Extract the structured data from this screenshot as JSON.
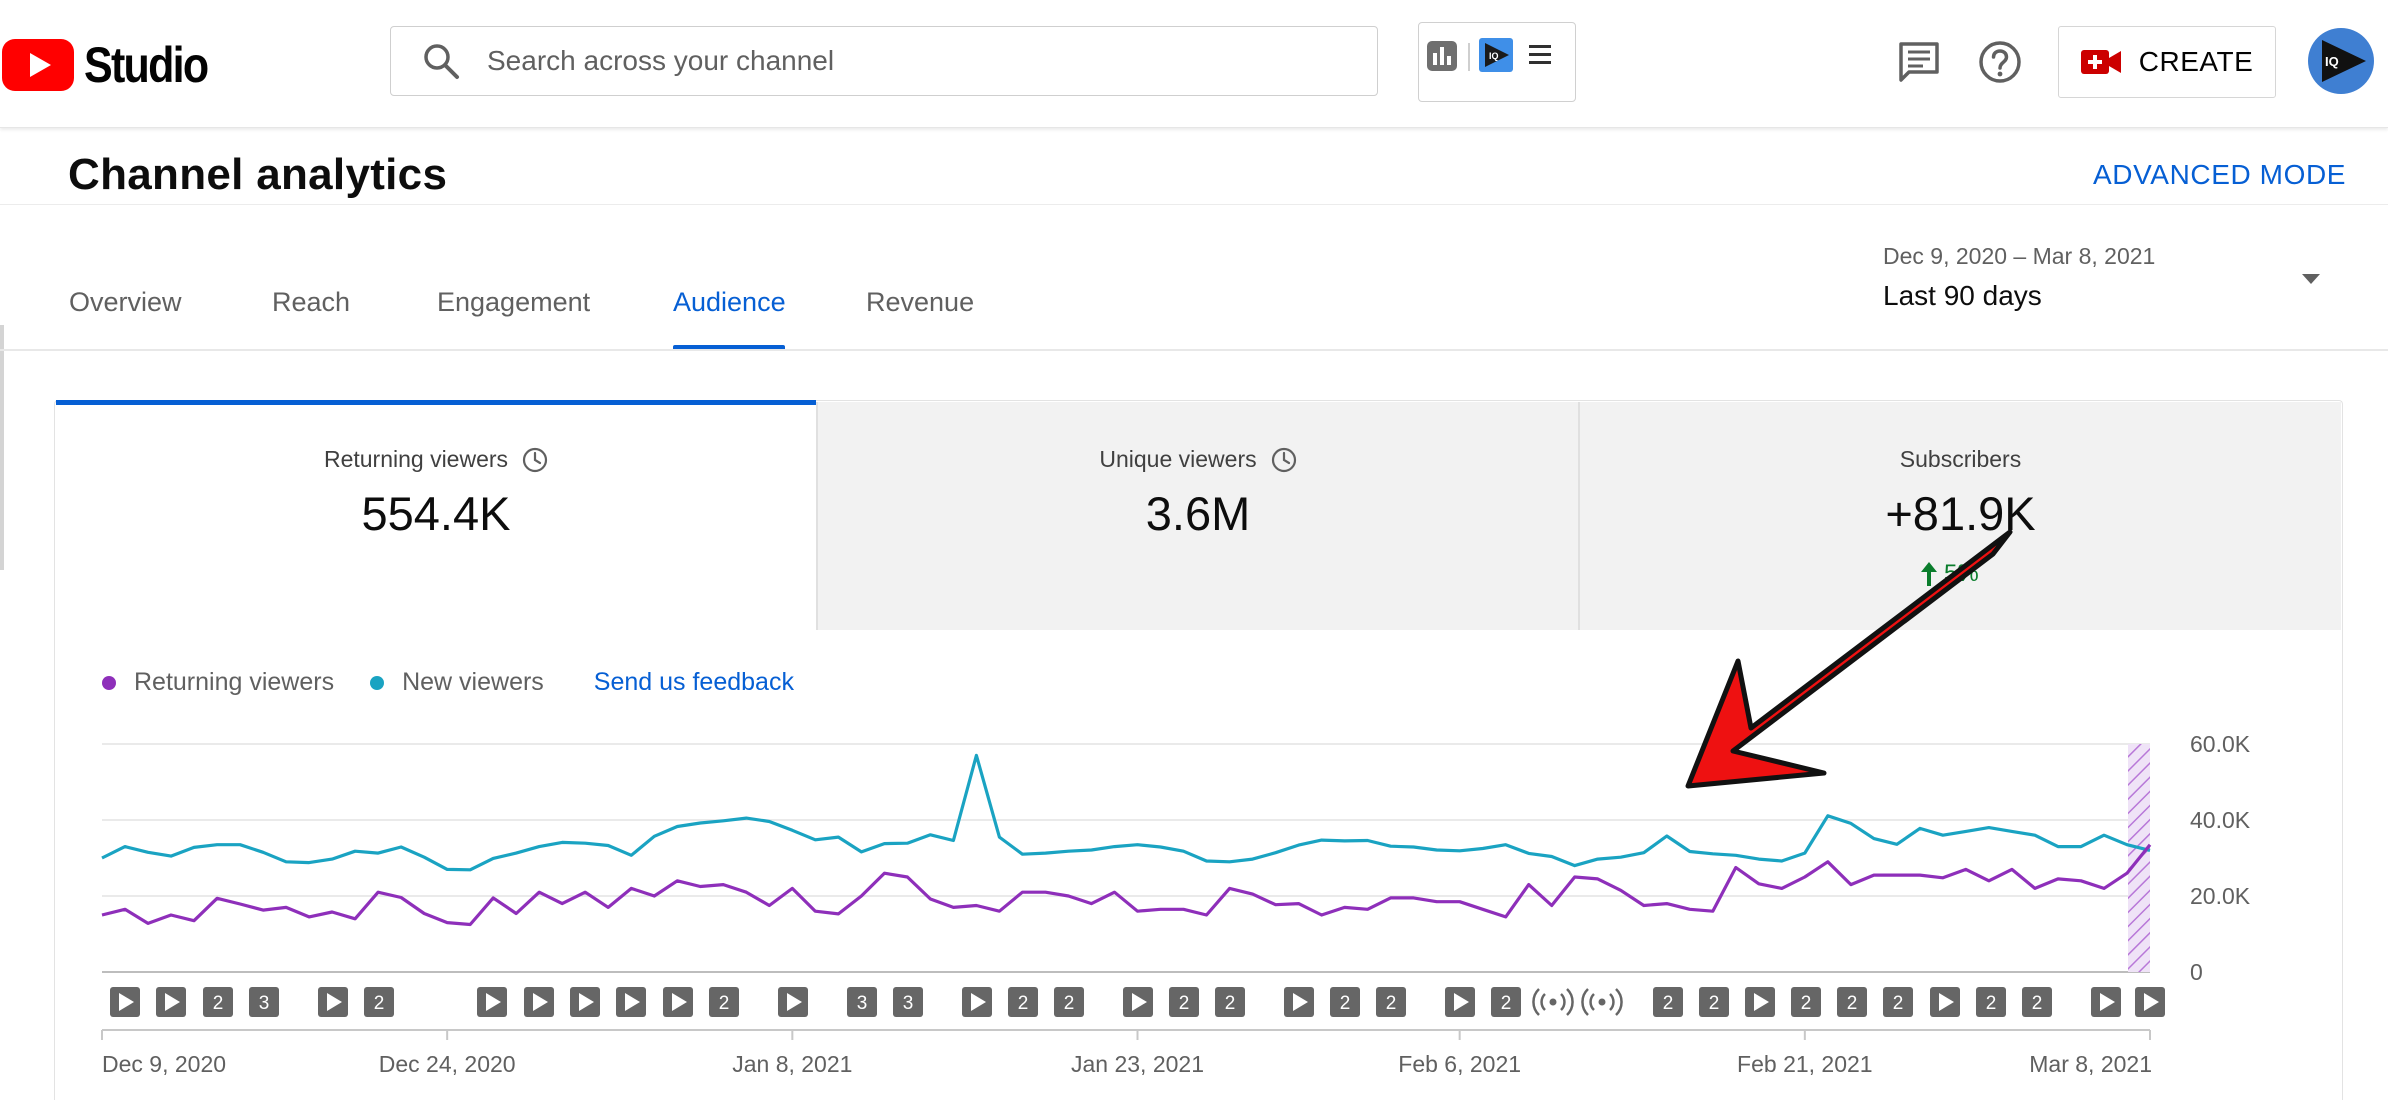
{
  "app": {
    "logo_text": "Studio",
    "search_placeholder": "Search across your channel",
    "create_label": "CREATE",
    "avatar_text": "IQ"
  },
  "header": {
    "title": "Channel analytics",
    "advanced_mode": "ADVANCED MODE"
  },
  "tabs": [
    {
      "label": "Overview",
      "active": false
    },
    {
      "label": "Reach",
      "active": false
    },
    {
      "label": "Engagement",
      "active": false
    },
    {
      "label": "Audience",
      "active": true
    },
    {
      "label": "Revenue",
      "active": false
    }
  ],
  "date_range": {
    "range": "Dec 9, 2020 – Mar 8, 2021",
    "label": "Last 90 days"
  },
  "metrics": [
    {
      "label": "Returning viewers",
      "value": "554.4K",
      "selected": true
    },
    {
      "label": "Unique viewers",
      "value": "3.6M",
      "selected": false
    },
    {
      "label": "Subscribers",
      "value": "+81.9K",
      "selected": false,
      "change": "5%"
    }
  ],
  "legend": {
    "returning": "Returning viewers",
    "new": "New viewers",
    "feedback": "Send us feedback"
  },
  "colors": {
    "returning": "#8e2fba",
    "new": "#1aa3c2",
    "accent": "#065fd4",
    "youtube_red": "#ff0000"
  },
  "chart_data": {
    "type": "line",
    "title": "",
    "xlabel": "",
    "ylabel": "",
    "ylim": [
      0,
      60000
    ],
    "y_ticks": [
      "0",
      "20.0K",
      "40.0K",
      "60.0K"
    ],
    "y_tick_values": [
      0,
      20000,
      40000,
      60000
    ],
    "x_ticks": [
      "Dec 9, 2020",
      "Dec 24, 2020",
      "Jan 8, 2021",
      "Jan 23, 2021",
      "Feb 6, 2021",
      "Feb 21, 2021",
      "Mar 8, 2021"
    ],
    "x_tick_days": [
      0,
      15,
      30,
      45,
      59,
      74,
      89
    ],
    "days": 90,
    "series": [
      {
        "name": "New viewers",
        "color": "#1aa3c2",
        "values": [
          30000,
          33000,
          31500,
          30500,
          32800,
          33500,
          33500,
          31500,
          29000,
          28800,
          29700,
          31800,
          31300,
          32900,
          30200,
          27000,
          26900,
          29900,
          31300,
          33000,
          34100,
          33900,
          33300,
          30700,
          35700,
          38300,
          39200,
          39800,
          40500,
          39600,
          37300,
          34800,
          35500,
          31600,
          33800,
          33900,
          36100,
          34600,
          57000,
          35500,
          31000,
          31300,
          31800,
          32100,
          33000,
          33500,
          32900,
          31800,
          29200,
          29000,
          29700,
          31400,
          33400,
          34700,
          34500,
          34600,
          33100,
          32900,
          32100,
          31900,
          32500,
          33500,
          31200,
          30400,
          28000,
          29700,
          30200,
          31400,
          35800,
          31700,
          31100,
          30700,
          29700,
          29200,
          31300,
          41100,
          39100,
          35100,
          33600,
          37800,
          36000,
          37000,
          38000,
          37000,
          36000,
          33000,
          33000,
          36000,
          33500,
          32000
        ]
      },
      {
        "name": "Returning viewers",
        "color": "#8e2fba",
        "values": [
          15000,
          16500,
          12800,
          15000,
          13500,
          19400,
          17900,
          16300,
          17000,
          14500,
          15800,
          14000,
          21000,
          19600,
          15400,
          13000,
          12500,
          19500,
          15400,
          21000,
          18000,
          21000,
          17000,
          22000,
          20000,
          24000,
          22500,
          23000,
          21000,
          17500,
          22000,
          16000,
          15300,
          20000,
          26000,
          25000,
          19200,
          17000,
          17500,
          16000,
          21000,
          21000,
          20000,
          18000,
          21000,
          16000,
          16500,
          16500,
          15000,
          22000,
          20500,
          17700,
          18000,
          15000,
          17000,
          16500,
          19500,
          19500,
          18500,
          18500,
          16500,
          14500,
          23000,
          17500,
          25000,
          24500,
          21500,
          17500,
          18000,
          16500,
          16000,
          27500,
          23200,
          22000,
          25000,
          29000,
          23000,
          25500,
          25500,
          25500,
          24800,
          27000,
          24000,
          27000,
          22000,
          24500,
          24000,
          22000,
          26000,
          33500
        ]
      }
    ],
    "markers": [
      "play",
      "play",
      "2",
      "3",
      "play",
      "2",
      "play",
      "play",
      "play",
      "play",
      "play",
      "2",
      "play",
      "3",
      "3",
      "play",
      "2",
      "2",
      "play",
      "2",
      "2",
      "play",
      "2",
      "2",
      "play",
      "2",
      "live",
      "live",
      "2",
      "2",
      "play",
      "2",
      "2",
      "2",
      "play",
      "2",
      "2",
      "play",
      "play"
    ]
  }
}
